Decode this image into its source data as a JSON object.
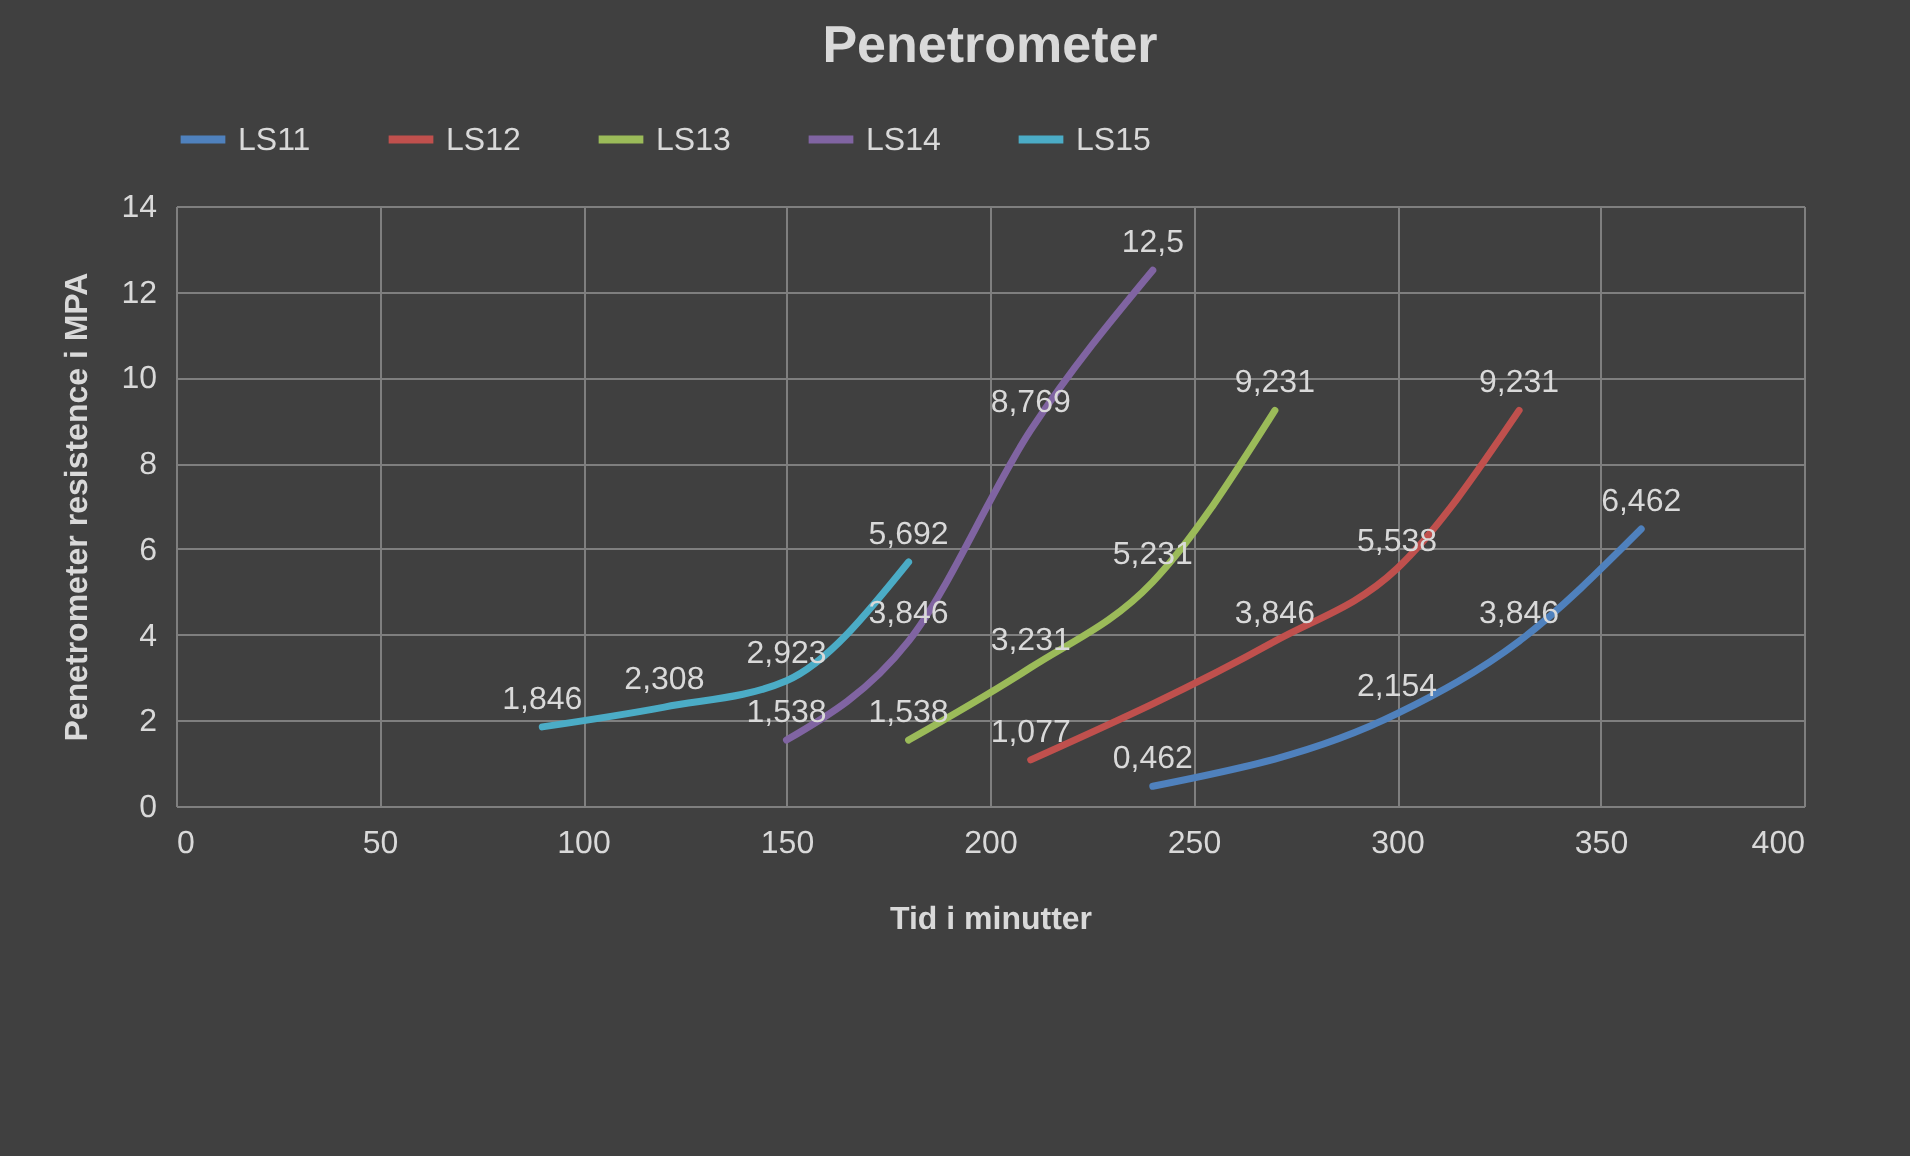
{
  "chart_data": {
    "type": "line",
    "title": "Penetrometer",
    "xlabel": "Tid i minutter",
    "ylabel": "Penetrometer resistence i MPA",
    "xlim": [
      0,
      400
    ],
    "xticks": [
      0,
      50,
      100,
      150,
      200,
      250,
      300,
      350,
      400
    ],
    "ylim": [
      0,
      14
    ],
    "yticks": [
      0,
      2,
      4,
      6,
      8,
      10,
      12,
      14
    ],
    "grid": true,
    "legend": "top",
    "series": [
      {
        "name": "LS11",
        "color": "#4f81bd",
        "x": [
          240,
          300,
          330,
          360
        ],
        "values": [
          0.462,
          2.154,
          3.846,
          6.462
        ],
        "value_labels": [
          "0,462",
          "2,154",
          "3,846",
          "6,462"
        ]
      },
      {
        "name": "LS12",
        "color": "#c0504d",
        "x": [
          210,
          270,
          300,
          330
        ],
        "values": [
          1.077,
          3.846,
          5.538,
          9.231
        ],
        "value_labels": [
          "1,077",
          "3,846",
          "5,538",
          "9,231"
        ]
      },
      {
        "name": "LS13",
        "color": "#9bbb59",
        "x": [
          180,
          210,
          240,
          270
        ],
        "values": [
          1.538,
          3.231,
          5.231,
          9.231
        ],
        "value_labels": [
          "1,538",
          "3,231",
          "5,231",
          "9,231"
        ]
      },
      {
        "name": "LS14",
        "color": "#8064a2",
        "x": [
          150,
          180,
          210,
          240
        ],
        "values": [
          1.538,
          3.846,
          8.769,
          12.5
        ],
        "value_labels": [
          "1,538",
          "3,846",
          "8,769",
          "12,5"
        ]
      },
      {
        "name": "LS15",
        "color": "#4bacc6",
        "x": [
          90,
          120,
          150,
          180
        ],
        "values": [
          1.846,
          2.308,
          2.923,
          5.692
        ],
        "value_labels": [
          "1,846",
          "2,308",
          "2,923",
          "5,692"
        ]
      }
    ]
  }
}
